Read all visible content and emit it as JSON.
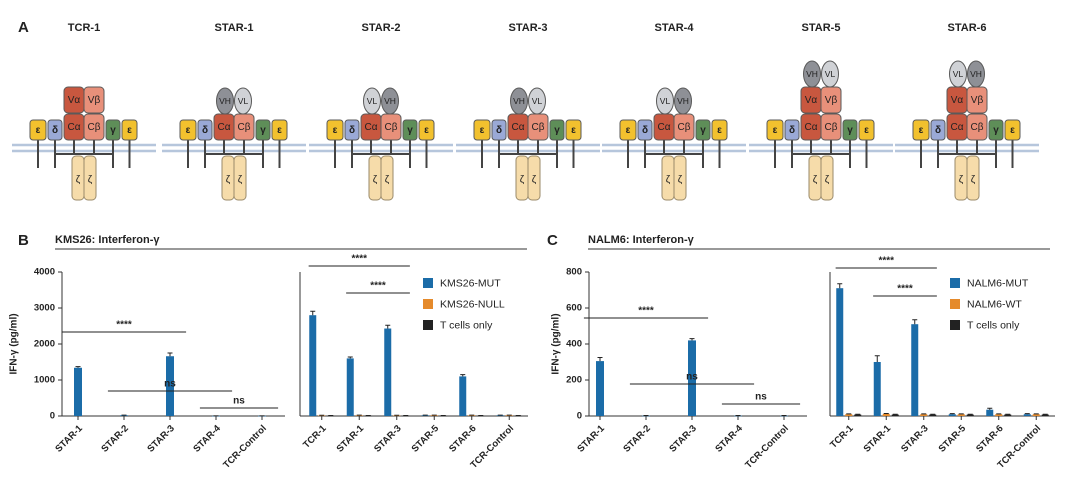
{
  "panel_a": {
    "label": "A",
    "constructs": [
      {
        "title": "TCR-1",
        "left": [
          "ε",
          "δ"
        ],
        "v": [
          "Vα",
          "Vβ"
        ],
        "c": [
          "Cα",
          "Cβ"
        ],
        "right": [
          "γ",
          "ε"
        ],
        "zeta": [
          "ζ",
          "ζ"
        ]
      },
      {
        "title": "STAR-1",
        "scfv": [
          {
            "label": "VH",
            "color": "#8e9096"
          },
          {
            "label": "VL",
            "color": "#d0d2d6"
          }
        ],
        "left": [
          "ε",
          "δ"
        ],
        "c": [
          "Cα",
          "Cβ"
        ],
        "right": [
          "γ",
          "ε"
        ],
        "zeta": [
          "ζ",
          "ζ"
        ]
      },
      {
        "title": "STAR-2",
        "scfv": [
          {
            "label": "VL",
            "color": "#d0d2d6"
          },
          {
            "label": "VH",
            "color": "#8e9096"
          }
        ],
        "left": [
          "ε",
          "δ"
        ],
        "c": [
          "Cα",
          "Cβ"
        ],
        "right": [
          "γ",
          "ε"
        ],
        "zeta": [
          "ζ",
          "ζ"
        ]
      },
      {
        "title": "STAR-3",
        "scfv": [
          {
            "label": "VH",
            "color": "#8e9096"
          },
          {
            "label": "VL",
            "color": "#d0d2d6"
          }
        ],
        "left": [
          "ε",
          "δ"
        ],
        "c": [
          "Cα",
          "Cβ"
        ],
        "right": [
          "γ",
          "ε"
        ],
        "zeta": [
          "ζ",
          "ζ"
        ]
      },
      {
        "title": "STAR-4",
        "scfv": [
          {
            "label": "VL",
            "color": "#d0d2d6"
          },
          {
            "label": "VH",
            "color": "#8e9096"
          }
        ],
        "left": [
          "ε",
          "δ"
        ],
        "c": [
          "Cα",
          "Cβ"
        ],
        "right": [
          "γ",
          "ε"
        ],
        "zeta": [
          "ζ",
          "ζ"
        ]
      },
      {
        "title": "STAR-5",
        "scfv": [
          {
            "label": "VH",
            "color": "#8e9096"
          },
          {
            "label": "VL",
            "color": "#d0d2d6"
          }
        ],
        "left": [
          "ε",
          "δ"
        ],
        "v": [
          "Vα",
          "Vβ"
        ],
        "c": [
          "Cα",
          "Cβ"
        ],
        "right": [
          "γ",
          "ε"
        ],
        "zeta": [
          "ζ",
          "ζ"
        ]
      },
      {
        "title": "STAR-6",
        "scfv": [
          {
            "label": "VL",
            "color": "#d0d2d6"
          },
          {
            "label": "VH",
            "color": "#8e9096"
          }
        ],
        "left": [
          "ε",
          "δ"
        ],
        "v": [
          "Vα",
          "Vβ"
        ],
        "c": [
          "Cα",
          "Cβ"
        ],
        "right": [
          "γ",
          "ε"
        ],
        "zeta": [
          "ζ",
          "ζ"
        ]
      }
    ]
  },
  "panel_b": {
    "label": "B",
    "title": "KMS26: Interferon-γ"
  },
  "panel_c": {
    "label": "C",
    "title": "NALM6: Interferon-γ"
  },
  "chart_data": [
    {
      "type": "bar",
      "y_label": "IFN-γ (pg/ml)",
      "categories": [
        "STAR-1",
        "STAR-2",
        "STAR-3",
        "STAR-4",
        "TCR-Control"
      ],
      "values": [
        1340,
        20,
        1660,
        5,
        5
      ],
      "errors": [
        30,
        5,
        90,
        0,
        0
      ],
      "color": "#1b6ca8",
      "ylim": [
        0,
        4000
      ],
      "yticks": [
        0,
        1000,
        2000,
        3000,
        4000
      ],
      "annotations": [
        {
          "text": "****",
          "between": [
            "STAR-1",
            "STAR-3"
          ]
        },
        {
          "text": "ns",
          "between": [
            "STAR-2",
            "STAR-4"
          ]
        },
        {
          "text": "ns",
          "between": [
            "STAR-4",
            "TCR-Control"
          ]
        }
      ]
    },
    {
      "type": "grouped_bar",
      "categories": [
        "TCR-1",
        "STAR-1",
        "STAR-3",
        "STAR-5",
        "STAR-6",
        "TCR-Control"
      ],
      "series": [
        {
          "name": "KMS26-MUT",
          "color": "#1b6ca8",
          "values": [
            2800,
            1600,
            2430,
            20,
            1100,
            20
          ],
          "errors": [
            110,
            40,
            90,
            5,
            50,
            5
          ]
        },
        {
          "name": "KMS26-NULL",
          "color": "#e58a2b",
          "values": [
            15,
            20,
            15,
            20,
            20,
            20
          ],
          "errors": [
            5,
            5,
            5,
            5,
            5,
            5
          ]
        },
        {
          "name": "T cells only",
          "color": "#222222",
          "values": [
            10,
            10,
            10,
            10,
            10,
            10
          ],
          "errors": [
            5,
            5,
            5,
            5,
            5,
            5
          ]
        }
      ],
      "ylim": [
        0,
        4000
      ],
      "legend": "upper right",
      "annotations": [
        {
          "text": "****",
          "between": [
            "TCR-1",
            "STAR-3"
          ]
        },
        {
          "text": "****",
          "between": [
            "STAR-1",
            "STAR-3"
          ]
        }
      ]
    },
    {
      "type": "bar",
      "y_label": "IFN-γ (pg/ml)",
      "categories": [
        "STAR-1",
        "STAR-2",
        "STAR-3",
        "STAR-4",
        "TCR-Control"
      ],
      "values": [
        305,
        2,
        420,
        2,
        2
      ],
      "errors": [
        20,
        1,
        10,
        1,
        1
      ],
      "color": "#1b6ca8",
      "ylim": [
        0,
        800
      ],
      "yticks": [
        0,
        200,
        400,
        600,
        800
      ],
      "annotations": [
        {
          "text": "****",
          "between": [
            "STAR-1",
            "STAR-3"
          ]
        },
        {
          "text": "ns",
          "between": [
            "STAR-2",
            "STAR-4"
          ]
        },
        {
          "text": "ns",
          "between": [
            "STAR-4",
            "TCR-Control"
          ]
        }
      ]
    },
    {
      "type": "grouped_bar",
      "categories": [
        "TCR-1",
        "STAR-1",
        "STAR-3",
        "STAR-5",
        "STAR-6",
        "TCR-Control"
      ],
      "series": [
        {
          "name": "NALM6-MUT",
          "color": "#1b6ca8",
          "values": [
            710,
            300,
            510,
            10,
            35,
            10
          ],
          "errors": [
            25,
            35,
            25,
            3,
            8,
            3
          ]
        },
        {
          "name": "NALM6-WT",
          "color": "#e58a2b",
          "values": [
            10,
            12,
            10,
            10,
            10,
            10
          ],
          "errors": [
            2,
            2,
            2,
            2,
            2,
            2
          ]
        },
        {
          "name": "T cells only",
          "color": "#222222",
          "values": [
            8,
            8,
            8,
            8,
            8,
            8
          ],
          "errors": [
            2,
            2,
            2,
            2,
            2,
            2
          ]
        }
      ],
      "ylim": [
        0,
        800
      ],
      "legend": "upper right",
      "annotations": [
        {
          "text": "****",
          "between": [
            "TCR-1",
            "STAR-3"
          ]
        },
        {
          "text": "****",
          "between": [
            "STAR-1",
            "STAR-3"
          ]
        }
      ]
    }
  ]
}
